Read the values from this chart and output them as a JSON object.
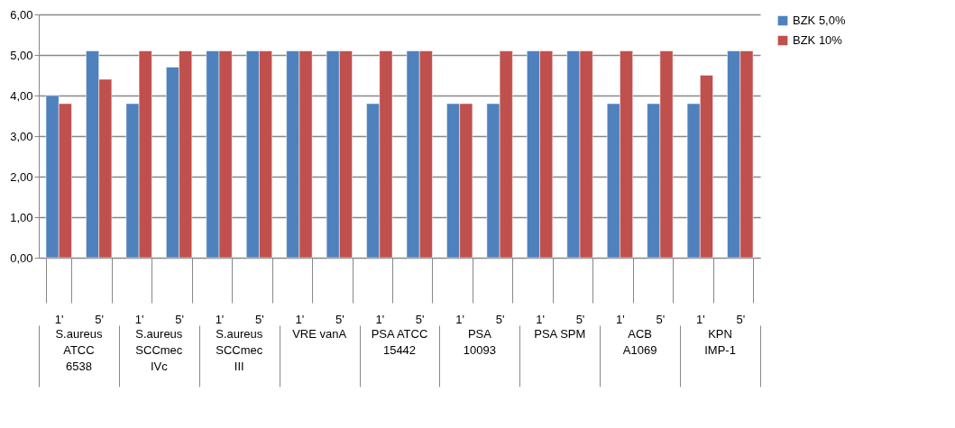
{
  "chart_data": {
    "type": "bar",
    "categories": [
      "1'",
      "5'",
      "1'",
      "5'",
      "1'",
      "5'",
      "1'",
      "5'",
      "1'",
      "5'",
      "1'",
      "5'",
      "1'",
      "5'",
      "1'",
      "5'",
      "1'",
      "5'"
    ],
    "annotations": [
      "S.aureus ATCC 6538",
      "S.aureus SCCmec IVc",
      "S.aureus SCCmec III",
      "VRE vanA",
      "PSA ATCC 15442",
      "PSA 10093",
      "PSA SPM",
      "ACB A1069",
      "KPN IMP-1"
    ],
    "series": [
      {
        "name": "BZK 5,0%",
        "color": "#4f81bd",
        "values": [
          4.0,
          5.1,
          3.8,
          4.7,
          5.1,
          5.1,
          5.1,
          5.1,
          3.8,
          5.1,
          3.8,
          3.8,
          5.1,
          5.1,
          3.8,
          3.8,
          3.8,
          5.1
        ]
      },
      {
        "name": "BZK 10%",
        "color": "#c0504d",
        "values": [
          3.8,
          4.4,
          5.1,
          5.1,
          5.1,
          5.1,
          5.1,
          5.1,
          5.1,
          5.1,
          3.8,
          5.1,
          5.1,
          5.1,
          5.1,
          5.1,
          4.5,
          5.1
        ]
      }
    ],
    "ylim": [
      0,
      6
    ],
    "yticks": [
      {
        "value": 0,
        "label": "0,00"
      },
      {
        "value": 1,
        "label": "1,00"
      },
      {
        "value": 2,
        "label": "2,00"
      },
      {
        "value": 3,
        "label": "3,00"
      },
      {
        "value": 4,
        "label": "4,00"
      },
      {
        "value": 5,
        "label": "5,00"
      },
      {
        "value": 6,
        "label": "6,00"
      }
    ],
    "grid": "y",
    "legend": "right"
  }
}
